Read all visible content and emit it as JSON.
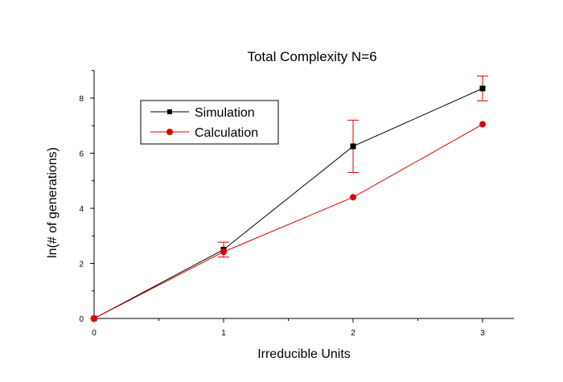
{
  "chart_data": {
    "type": "line",
    "title": "Total Complexity N=6",
    "xlabel": "Irreducible Units",
    "ylabel": "ln(# of generations)",
    "xlim": [
      0,
      3.25
    ],
    "ylim": [
      0,
      9
    ],
    "xticks": [
      "0",
      "1",
      "2",
      "3"
    ],
    "yticks": [
      "0",
      "2",
      "4",
      "6",
      "8"
    ],
    "grid": false,
    "legend_position": "top-left",
    "series": [
      {
        "name": "Simulation",
        "color": "#000000",
        "marker": "square",
        "x": [
          0,
          1,
          2,
          3
        ],
        "y": [
          0,
          2.5,
          6.25,
          8.35
        ],
        "error": [
          0,
          0.27,
          0.95,
          0.45
        ]
      },
      {
        "name": "Calculation",
        "color": "#e00000",
        "marker": "circle",
        "x": [
          0,
          1,
          2,
          3
        ],
        "y": [
          0,
          2.42,
          4.4,
          7.05
        ]
      }
    ]
  }
}
